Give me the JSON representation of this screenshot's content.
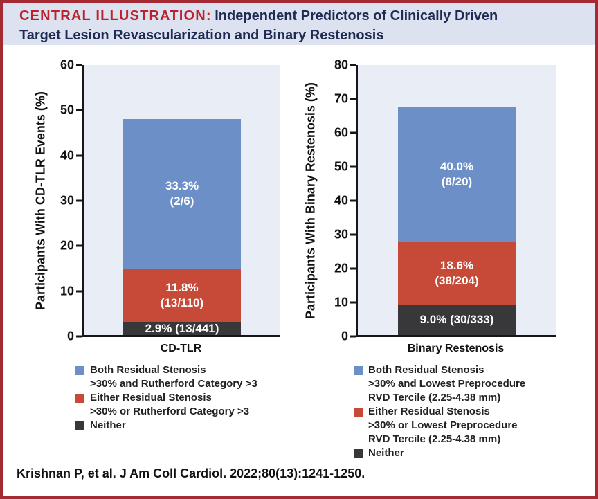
{
  "header": {
    "kicker": "CENTRAL ILLUSTRATION:",
    "title_line1": "Independent Predictors of Clinically Driven",
    "title_line2": "Target Lesion Revascularization and Binary Restenosis"
  },
  "colors": {
    "frame_border": "#a42a33",
    "header_bg": "#dce2f0",
    "kicker_red": "#bc222c",
    "title_navy": "#1f2b52",
    "plot_bg": "#e9edf5",
    "blue": "#6c8fc8",
    "red": "#c74a38",
    "dark": "#38383a"
  },
  "chart_data": [
    {
      "type": "bar",
      "stacked": true,
      "categories": [
        "CD-TLR"
      ],
      "xlabel": "CD-TLR",
      "ylabel": "Participants With CD-TLR Events (%)",
      "ylim": [
        0,
        60
      ],
      "yticks": [
        0,
        10,
        20,
        30,
        40,
        50,
        60
      ],
      "grid": false,
      "legend_position": "below",
      "series": [
        {
          "key": "neither",
          "name": "Neither",
          "color": "#38383a",
          "value": 2.9,
          "fraction": "13/441",
          "label_lines": [
            "2.9% (13/441)"
          ]
        },
        {
          "key": "either",
          "name": "Either Residual Stenosis >30% or Rutherford Category >3",
          "color": "#c74a38",
          "value": 11.8,
          "fraction": "13/110",
          "label_lines": [
            "11.8%",
            "(13/110)"
          ]
        },
        {
          "key": "both",
          "name": "Both Residual Stenosis >30% and Rutherford Category >3",
          "color": "#6c8fc8",
          "value": 33.3,
          "fraction": "2/6",
          "label_lines": [
            "33.3%",
            "(2/6)"
          ]
        }
      ],
      "stack_total": 48.0
    },
    {
      "type": "bar",
      "stacked": true,
      "categories": [
        "Binary Restenosis"
      ],
      "xlabel": "Binary Restenosis",
      "ylabel": "Participants With Binary Restenosis (%)",
      "ylim": [
        0,
        80
      ],
      "yticks": [
        0,
        10,
        20,
        30,
        40,
        50,
        60,
        70,
        80
      ],
      "grid": false,
      "legend_position": "below",
      "series": [
        {
          "key": "neither",
          "name": "Neither",
          "color": "#38383a",
          "value": 9.0,
          "fraction": "30/333",
          "label_lines": [
            "9.0% (30/333)"
          ]
        },
        {
          "key": "either",
          "name": "Either Residual Stenosis >30% or Lowest Preprocedure RVD Tercile (2.25-4.38 mm)",
          "color": "#c74a38",
          "value": 18.6,
          "fraction": "38/204",
          "label_lines": [
            "18.6%",
            "(38/204)"
          ]
        },
        {
          "key": "both",
          "name": "Both Residual Stenosis >30% and Lowest Preprocedure RVD Tercile (2.25-4.38 mm)",
          "color": "#6c8fc8",
          "value": 40.0,
          "fraction": "8/20",
          "label_lines": [
            "40.0%",
            "(8/20)"
          ]
        }
      ],
      "stack_total": 67.6
    }
  ],
  "legends": [
    {
      "items": [
        {
          "color": "#6c8fc8",
          "lines": [
            "Both Residual Stenosis",
            ">30% and Rutherford Category >3"
          ]
        },
        {
          "color": "#c74a38",
          "lines": [
            "Either Residual Stenosis",
            ">30% or Rutherford Category >3"
          ]
        },
        {
          "color": "#38383a",
          "lines": [
            "Neither"
          ]
        }
      ]
    },
    {
      "items": [
        {
          "color": "#6c8fc8",
          "lines": [
            "Both Residual Stenosis",
            ">30% and Lowest Preprocedure",
            "RVD Tercile (2.25-4.38 mm)"
          ]
        },
        {
          "color": "#c74a38",
          "lines": [
            "Either Residual Stenosis",
            ">30% or Lowest Preprocedure",
            "RVD Tercile (2.25-4.38 mm)"
          ]
        },
        {
          "color": "#38383a",
          "lines": [
            "Neither"
          ]
        }
      ]
    }
  ],
  "citation": "Krishnan P, et al. J Am Coll Cardiol. 2022;80(13):1241-1250."
}
